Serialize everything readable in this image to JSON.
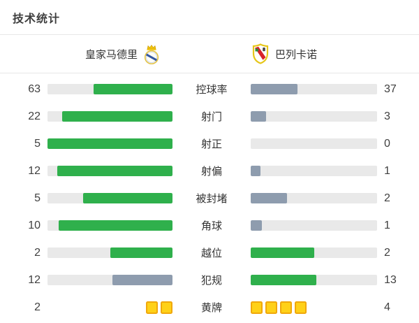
{
  "title": "技术统计",
  "header": {
    "home": {
      "name": "皇家马德里"
    },
    "away": {
      "name": "巴列卡诺"
    }
  },
  "colors": {
    "green": "#2fb04c",
    "slate": "#8e9cae",
    "track": "#e9e9e9",
    "card_fill": "#ffd118",
    "card_border": "#f0a80c"
  },
  "rows": [
    {
      "key": "possession",
      "label": "控球率",
      "home": 63,
      "away": 37,
      "home_style": "green",
      "away_style": "slate",
      "type": "bar"
    },
    {
      "key": "shots",
      "label": "射门",
      "home": 22,
      "away": 3,
      "home_style": "green",
      "away_style": "slate",
      "type": "bar"
    },
    {
      "key": "on-target",
      "label": "射正",
      "home": 5,
      "away": 0,
      "home_style": "green",
      "away_style": "slate",
      "type": "bar"
    },
    {
      "key": "off-target",
      "label": "射偏",
      "home": 12,
      "away": 1,
      "home_style": "green",
      "away_style": "slate",
      "type": "bar"
    },
    {
      "key": "blocked",
      "label": "被封堵",
      "home": 5,
      "away": 2,
      "home_style": "green",
      "away_style": "slate",
      "type": "bar"
    },
    {
      "key": "corners",
      "label": "角球",
      "home": 10,
      "away": 1,
      "home_style": "green",
      "away_style": "slate",
      "type": "bar"
    },
    {
      "key": "offsides",
      "label": "越位",
      "home": 2,
      "away": 2,
      "home_style": "green",
      "away_style": "green",
      "type": "bar"
    },
    {
      "key": "fouls",
      "label": "犯规",
      "home": 12,
      "away": 13,
      "home_style": "slate",
      "away_style": "green",
      "type": "bar"
    },
    {
      "key": "yellow-cards",
      "label": "黄牌",
      "home": 2,
      "away": 4,
      "home_style": "cards",
      "away_style": "cards",
      "type": "cards"
    }
  ],
  "chart_data": {
    "type": "bar",
    "title": "技术统计",
    "categories": [
      "控球率",
      "射门",
      "射正",
      "射偏",
      "被封堵",
      "角球",
      "越位",
      "犯规",
      "黄牌"
    ],
    "series": [
      {
        "name": "皇家马德里",
        "values": [
          63,
          22,
          5,
          12,
          5,
          10,
          2,
          12,
          2
        ]
      },
      {
        "name": "巴列卡诺",
        "values": [
          37,
          3,
          0,
          1,
          2,
          1,
          2,
          13,
          4
        ]
      }
    ],
    "layout": "paired horizontal bars; fill fraction = value / (home + away); green = leading side, slate-gray = trailing side; yellow-cards row rendered as card icons",
    "legend_position": "top",
    "grid": false
  }
}
